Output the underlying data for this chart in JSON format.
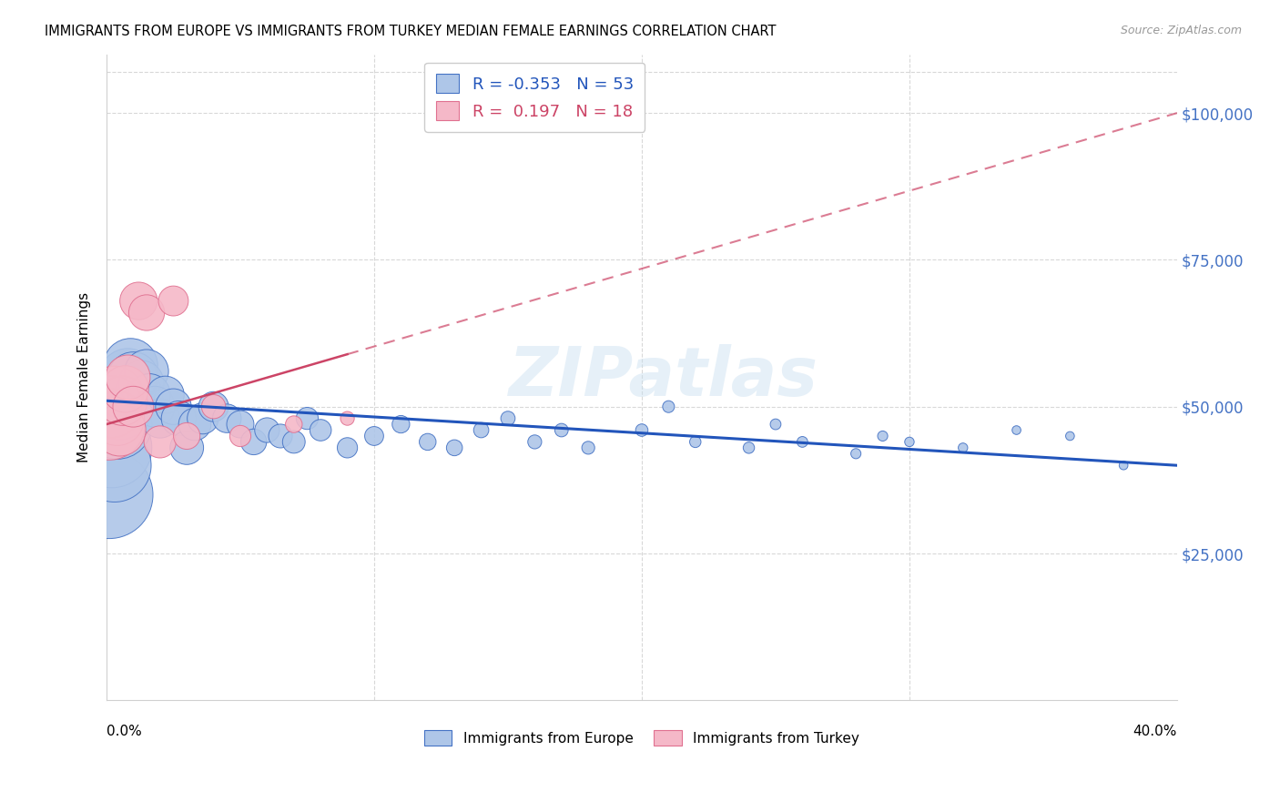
{
  "title": "IMMIGRANTS FROM EUROPE VS IMMIGRANTS FROM TURKEY MEDIAN FEMALE EARNINGS CORRELATION CHART",
  "source": "Source: ZipAtlas.com",
  "ylabel": "Median Female Earnings",
  "yticks": [
    0,
    25000,
    50000,
    75000,
    100000
  ],
  "ytick_labels": [
    "",
    "$25,000",
    "$50,000",
    "$75,000",
    "$100,000"
  ],
  "xlim": [
    0.0,
    0.4
  ],
  "ylim": [
    0,
    110000
  ],
  "legend_europe": "Immigrants from Europe",
  "legend_turkey": "Immigrants from Turkey",
  "R_europe": "-0.353",
  "N_europe": "53",
  "R_turkey": "0.197",
  "N_turkey": "18",
  "watermark": "ZIPatlas",
  "europe_color": "#aec6e8",
  "europe_edge_color": "#4472c4",
  "turkey_color": "#f5b8c8",
  "turkey_edge_color": "#e07090",
  "europe_line_color": "#2255bb",
  "turkey_line_color": "#cc4466",
  "europe_scatter_x": [
    0.001,
    0.002,
    0.003,
    0.004,
    0.005,
    0.007,
    0.008,
    0.009,
    0.01,
    0.012,
    0.013,
    0.015,
    0.016,
    0.018,
    0.02,
    0.022,
    0.025,
    0.027,
    0.03,
    0.033,
    0.036,
    0.04,
    0.045,
    0.05,
    0.055,
    0.06,
    0.065,
    0.07,
    0.075,
    0.08,
    0.09,
    0.1,
    0.11,
    0.12,
    0.13,
    0.14,
    0.15,
    0.16,
    0.17,
    0.18,
    0.2,
    0.21,
    0.22,
    0.24,
    0.25,
    0.26,
    0.28,
    0.29,
    0.3,
    0.32,
    0.34,
    0.36,
    0.38
  ],
  "europe_scatter_y": [
    35000,
    43000,
    40000,
    47000,
    50000,
    53000,
    55000,
    57000,
    55000,
    52000,
    54000,
    56000,
    52000,
    50000,
    48000,
    52000,
    50000,
    48000,
    43000,
    47000,
    48000,
    50000,
    48000,
    47000,
    44000,
    46000,
    45000,
    44000,
    48000,
    46000,
    43000,
    45000,
    47000,
    44000,
    43000,
    46000,
    48000,
    44000,
    46000,
    43000,
    46000,
    50000,
    44000,
    43000,
    47000,
    44000,
    42000,
    45000,
    44000,
    43000,
    46000,
    45000,
    40000
  ],
  "europe_scatter_s": [
    600,
    500,
    420,
    380,
    340,
    290,
    260,
    230,
    200,
    180,
    160,
    150,
    140,
    130,
    120,
    110,
    100,
    95,
    88,
    82,
    76,
    70,
    64,
    58,
    52,
    48,
    44,
    40,
    38,
    36,
    32,
    28,
    24,
    22,
    20,
    18,
    16,
    15,
    14,
    13,
    12,
    11,
    10,
    10,
    9,
    9,
    8,
    8,
    7,
    7,
    6,
    6,
    6
  ],
  "turkey_scatter_x": [
    0.001,
    0.002,
    0.003,
    0.004,
    0.005,
    0.006,
    0.007,
    0.008,
    0.01,
    0.012,
    0.015,
    0.02,
    0.025,
    0.03,
    0.04,
    0.05,
    0.07,
    0.09
  ],
  "turkey_scatter_y": [
    47000,
    50000,
    52000,
    48000,
    46000,
    51000,
    53000,
    55000,
    50000,
    68000,
    66000,
    44000,
    68000,
    45000,
    50000,
    45000,
    47000,
    48000
  ],
  "turkey_scatter_s": [
    400,
    300,
    260,
    230,
    210,
    190,
    170,
    155,
    130,
    110,
    100,
    80,
    70,
    55,
    45,
    35,
    22,
    15
  ],
  "eu_trendline_x0": 0.0,
  "eu_trendline_x1": 0.4,
  "eu_trendline_y0": 51000,
  "eu_trendline_y1": 40000,
  "tr_trendline_x0": 0.0,
  "tr_trendline_x1": 0.4,
  "tr_trendline_y0": 47000,
  "tr_trendline_y1": 100000
}
